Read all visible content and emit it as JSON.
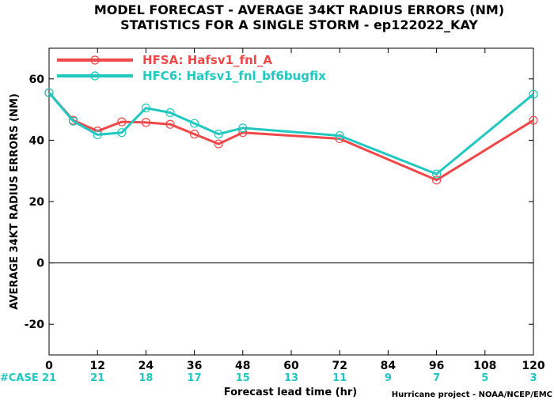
{
  "title_line1": "MODEL FORECAST - AVERAGE 34KT RADIUS ERRORS (NM)",
  "title_line2": "STATISTICS FOR A SINGLE STORM - ep122022_KAY",
  "credit": "Hurricane project - NOAA/NCEP/EMC",
  "case_label": "#CASE",
  "case_counts": [
    "21",
    "21",
    "18",
    "17",
    "15",
    "13",
    "11",
    "9",
    "7",
    "5",
    "3"
  ],
  "colors": {
    "hfsa": "#f04848",
    "hfc6": "#20c8c0",
    "case_text": "#20c8c0",
    "case_label": "#20c8c0"
  },
  "chart_data": {
    "type": "line",
    "title": "MODEL FORECAST - AVERAGE 34KT RADIUS ERRORS (NM)",
    "subtitle": "STATISTICS FOR A SINGLE STORM - ep122022_KAY",
    "xlabel": "Forecast lead time (hr)",
    "ylabel": "AVERAGE 34KT RADIUS ERRORS (NM)",
    "xlim": [
      0,
      120
    ],
    "ylim": [
      -30,
      70
    ],
    "xticks": [
      0,
      12,
      24,
      36,
      48,
      60,
      72,
      84,
      96,
      108,
      120
    ],
    "yticks": [
      -20,
      0,
      20,
      40,
      60
    ],
    "legend_position": "top-left",
    "grid": false,
    "series": [
      {
        "name": "HFSA: Hafsv1_fnl_A",
        "color": "#f04848",
        "x": [
          0,
          6,
          12,
          18,
          24,
          30,
          36,
          42,
          48,
          72,
          96,
          120
        ],
        "y": [
          55.5,
          46.5,
          43.0,
          46.0,
          45.8,
          45.2,
          42.0,
          38.8,
          42.5,
          40.5,
          27.0,
          46.5
        ]
      },
      {
        "name": "HFC6: Hafsv1_fnl_bf6bugfix",
        "color": "#20c8c0",
        "x": [
          0,
          6,
          12,
          18,
          24,
          30,
          36,
          42,
          48,
          72,
          96,
          120
        ],
        "y": [
          55.5,
          46.2,
          41.8,
          42.5,
          50.5,
          49.0,
          45.5,
          42.0,
          44.0,
          41.5,
          29.0,
          55.0
        ]
      }
    ]
  }
}
